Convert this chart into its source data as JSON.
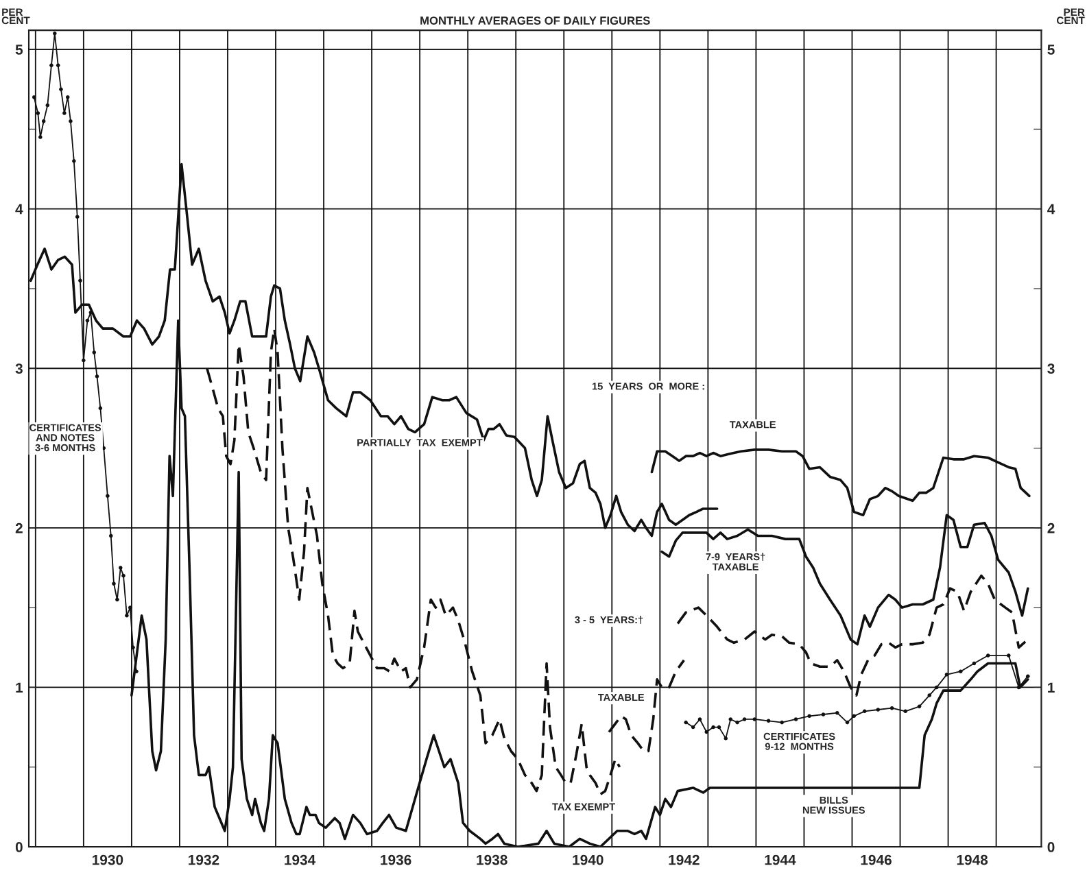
{
  "chart_data": {
    "type": "line",
    "title": "MONTHLY AVERAGES OF DAILY FIGURES",
    "ylabel": "PER\nCENT",
    "y2label": "PER\nCENT",
    "xlim": [
      1928.86,
      1949.94
    ],
    "xticks": [
      {
        "value": 1929,
        "label": null
      },
      {
        "value": 1930,
        "label": null
      },
      {
        "value": 1931,
        "label": null
      },
      {
        "value": 1932,
        "label": null
      },
      {
        "value": 1933,
        "label": null
      },
      {
        "value": 1934,
        "label": null
      },
      {
        "value": 1935,
        "label": null
      },
      {
        "value": 1936,
        "label": null
      },
      {
        "value": 1937,
        "label": null
      },
      {
        "value": 1938,
        "label": null
      },
      {
        "value": 1939,
        "label": null
      },
      {
        "value": 1940,
        "label": null
      },
      {
        "value": 1941,
        "label": null
      },
      {
        "value": 1942,
        "label": null
      },
      {
        "value": 1943,
        "label": null
      },
      {
        "value": 1944,
        "label": null
      },
      {
        "value": 1945,
        "label": null
      },
      {
        "value": 1946,
        "label": null
      },
      {
        "value": 1947,
        "label": null
      },
      {
        "value": 1948,
        "label": null
      },
      {
        "value": 1949,
        "label": null
      },
      {
        "value": 1930.5,
        "label": "1930"
      },
      {
        "value": 1932.5,
        "label": "1932"
      },
      {
        "value": 1934.5,
        "label": "1934"
      },
      {
        "value": 1936.5,
        "label": "1936"
      },
      {
        "value": 1938.5,
        "label": "1938"
      },
      {
        "value": 1940.5,
        "label": "1940"
      },
      {
        "value": 1942.5,
        "label": "1942"
      },
      {
        "value": 1944.5,
        "label": "1944"
      },
      {
        "value": 1946.5,
        "label": "1946"
      },
      {
        "value": 1948.5,
        "label": "1948"
      }
    ],
    "ylim": [
      0,
      5.12
    ],
    "yticks": [
      0,
      {
        "value": 0.5,
        "label": null
      },
      1,
      {
        "value": 1.5,
        "label": null
      },
      2,
      {
        "value": 2.5,
        "label": null
      },
      3,
      {
        "value": 3.5,
        "label": null
      },
      4,
      {
        "value": 4.5,
        "label": null
      },
      5
    ],
    "y2lim": [
      0,
      5.12
    ],
    "y2ticks": [
      0,
      {
        "value": 0.5,
        "label": null
      },
      1,
      {
        "value": 1.5,
        "label": null
      },
      2,
      {
        "value": 2.5,
        "label": null
      },
      3,
      {
        "value": 3.5,
        "label": null
      },
      4,
      {
        "value": 4.5,
        "label": null
      },
      5
    ],
    "grid": true,
    "series": [
      {
        "color": "#111111",
        "marker": "circle",
        "line_style": "solid",
        "x": [
          1928.97,
          1929.05,
          1929.1,
          1929.17,
          1929.25,
          1929.33,
          1929.4,
          1929.47,
          1929.53,
          1929.6,
          1929.67,
          1929.73,
          1929.8,
          1929.87,
          1929.93,
          1930.0,
          1930.08,
          1930.15,
          1930.22,
          1930.28,
          1930.35,
          1930.42,
          1930.5,
          1930.57,
          1930.63,
          1930.7,
          1930.77,
          1930.83,
          1930.9,
          1930.97,
          1931.03,
          1931.1
        ],
        "values": [
          4.7,
          4.6,
          4.45,
          4.55,
          4.65,
          4.9,
          5.1,
          4.9,
          4.75,
          4.6,
          4.7,
          4.55,
          4.3,
          3.95,
          3.55,
          3.05,
          3.3,
          3.35,
          3.1,
          2.95,
          2.75,
          2.5,
          2.2,
          1.95,
          1.65,
          1.55,
          1.75,
          1.7,
          1.45,
          1.5,
          1.25,
          1.1
        ]
      },
      {
        "color": "#111111",
        "marker": "none",
        "line_style": "solid",
        "x": [
          1931.0,
          1931.21,
          1931.31,
          1931.43,
          1931.51,
          1931.61,
          1931.71,
          1931.79,
          1931.86,
          1931.97,
          1932.04,
          1932.11,
          1932.21,
          1932.3,
          1932.4,
          1932.54,
          1932.61,
          1932.73,
          1932.8,
          1932.94,
          1933.04,
          1933.11,
          1933.23,
          1933.29,
          1933.4,
          1933.51,
          1933.57,
          1933.69,
          1933.76,
          1933.86,
          1933.94,
          1934.04,
          1934.19,
          1934.33,
          1934.43,
          1934.5,
          1934.64,
          1934.71,
          1934.83,
          1934.9,
          1935.04,
          1935.23,
          1935.33,
          1935.44,
          1935.61,
          1935.76,
          1935.9,
          1936.11,
          1936.23,
          1936.36,
          1936.51,
          1936.71,
          1936.9,
          1937.14,
          1937.29,
          1937.4,
          1937.51,
          1937.64,
          1937.8,
          1937.9,
          1938.04,
          1938.26,
          1938.37,
          1938.51,
          1938.63,
          1938.76,
          1939.04,
          1939.47,
          1939.64,
          1939.8,
          1940.11,
          1940.33,
          1940.54,
          1940.76,
          1941.11,
          1941.33,
          1941.47,
          1941.61,
          1941.71,
          1941.9,
          1942.0,
          1942.11,
          1942.23,
          1942.37,
          1942.69,
          1942.9,
          1943.04,
          1947.4,
          1947.51,
          1947.66,
          1947.76,
          1947.9,
          1948.26,
          1948.47,
          1948.61,
          1948.83,
          1949.4,
          1949.5,
          1949.66
        ],
        "values": [
          0.95,
          1.45,
          1.3,
          0.6,
          0.48,
          0.6,
          1.3,
          2.45,
          2.2,
          3.3,
          2.75,
          2.7,
          1.7,
          0.7,
          0.45,
          0.45,
          0.5,
          0.25,
          0.2,
          0.1,
          0.3,
          0.5,
          2.35,
          0.55,
          0.3,
          0.2,
          0.3,
          0.15,
          0.1,
          0.3,
          0.7,
          0.65,
          0.3,
          0.15,
          0.08,
          0.08,
          0.25,
          0.2,
          0.2,
          0.15,
          0.12,
          0.18,
          0.15,
          0.05,
          0.2,
          0.15,
          0.08,
          0.1,
          0.15,
          0.2,
          0.12,
          0.1,
          0.3,
          0.55,
          0.7,
          0.6,
          0.5,
          0.55,
          0.4,
          0.15,
          0.1,
          0.05,
          0.02,
          0.05,
          0.08,
          0.02,
          0.0,
          0.02,
          0.1,
          0.02,
          0.0,
          0.05,
          0.02,
          0.0,
          0.1,
          0.1,
          0.08,
          0.1,
          0.05,
          0.25,
          0.2,
          0.3,
          0.25,
          0.35,
          0.37,
          0.34,
          0.37,
          0.37,
          0.7,
          0.8,
          0.9,
          0.98,
          0.98,
          1.05,
          1.1,
          1.15,
          1.15,
          1.0,
          1.05
        ]
      },
      {
        "color": "#111111",
        "marker": "circle",
        "line_style": "solid",
        "x": [
          1942.54,
          1942.69,
          1942.83,
          1942.97,
          1943.11,
          1943.23,
          1943.37,
          1943.47,
          1943.61,
          1943.76,
          1943.97,
          1944.26,
          1944.54,
          1944.83,
          1945.11,
          1945.4,
          1945.69,
          1945.9,
          1946.04,
          1946.26,
          1946.54,
          1946.83,
          1947.11,
          1947.4,
          1947.61,
          1947.76,
          1947.97,
          1948.26,
          1948.54,
          1948.83,
          1949.26,
          1949.47,
          1949.66
        ],
        "values": [
          0.78,
          0.75,
          0.8,
          0.72,
          0.75,
          0.75,
          0.68,
          0.8,
          0.78,
          0.8,
          0.8,
          0.79,
          0.78,
          0.8,
          0.82,
          0.83,
          0.84,
          0.78,
          0.82,
          0.85,
          0.86,
          0.87,
          0.85,
          0.88,
          0.95,
          1.0,
          1.08,
          1.1,
          1.15,
          1.2,
          1.2,
          1.0,
          1.07
        ]
      },
      {
        "color": "#111111",
        "marker": "none",
        "line_style": "solid",
        "x": [
          1928.9,
          1929.04,
          1929.19,
          1929.33,
          1929.47,
          1929.61,
          1929.76,
          1929.83,
          1929.97,
          1930.11,
          1930.26,
          1930.4,
          1930.61,
          1930.83,
          1930.97,
          1931.11,
          1931.26,
          1931.43,
          1931.57,
          1931.69,
          1931.8,
          1931.9,
          1932.04,
          1932.14,
          1932.26,
          1932.4,
          1932.54,
          1932.69,
          1932.83,
          1932.94,
          1933.04,
          1933.14,
          1933.26,
          1933.37,
          1933.51,
          1933.66,
          1933.8,
          1933.9,
          1933.97,
          1934.09,
          1934.19,
          1934.3,
          1934.4,
          1934.51,
          1934.66,
          1934.8,
          1934.9,
          1935.09,
          1935.26,
          1935.47,
          1935.61,
          1935.76,
          1935.97,
          1936.19,
          1936.33,
          1936.47,
          1936.61,
          1936.76,
          1936.9,
          1937.09,
          1937.26,
          1937.47,
          1937.61,
          1937.76,
          1937.97,
          1938.19,
          1938.33,
          1938.43,
          1938.54,
          1938.66,
          1938.8,
          1938.97,
          1939.19,
          1939.33,
          1939.44,
          1939.54,
          1939.66,
          1939.76,
          1939.9,
          1940.04,
          1940.19,
          1940.33,
          1940.43,
          1940.54,
          1940.66,
          1940.76,
          1940.86,
          1940.97,
          1941.09,
          1941.19,
          1941.33,
          1941.47,
          1941.61,
          1941.71,
          1941.83,
          1941.94,
          1942.04,
          1942.19,
          1942.33,
          1942.47,
          1942.61,
          1942.76,
          1942.9,
          1943.19
        ],
        "values": [
          3.55,
          3.65,
          3.75,
          3.62,
          3.68,
          3.7,
          3.65,
          3.35,
          3.4,
          3.4,
          3.3,
          3.25,
          3.25,
          3.2,
          3.2,
          3.3,
          3.25,
          3.15,
          3.2,
          3.3,
          3.62,
          3.62,
          4.28,
          4.0,
          3.65,
          3.75,
          3.55,
          3.42,
          3.45,
          3.35,
          3.22,
          3.3,
          3.42,
          3.42,
          3.2,
          3.2,
          3.2,
          3.45,
          3.52,
          3.5,
          3.3,
          3.15,
          3.0,
          2.92,
          3.2,
          3.1,
          3.0,
          2.8,
          2.75,
          2.7,
          2.85,
          2.85,
          2.8,
          2.7,
          2.7,
          2.65,
          2.7,
          2.62,
          2.6,
          2.65,
          2.82,
          2.8,
          2.8,
          2.82,
          2.72,
          2.68,
          2.55,
          2.62,
          2.62,
          2.65,
          2.58,
          2.57,
          2.5,
          2.3,
          2.2,
          2.3,
          2.7,
          2.55,
          2.35,
          2.25,
          2.28,
          2.4,
          2.42,
          2.25,
          2.22,
          2.15,
          2.0,
          2.08,
          2.2,
          2.1,
          2.02,
          1.98,
          2.05,
          2.0,
          1.95,
          2.1,
          2.15,
          2.05,
          2.02,
          2.05,
          2.08,
          2.1,
          2.12,
          2.12
        ]
      },
      {
        "color": "#111111",
        "marker": "none",
        "line_style": "solid",
        "x": [
          1941.83,
          1941.94,
          1942.11,
          1942.26,
          1942.4,
          1942.54,
          1942.69,
          1942.83,
          1942.97,
          1943.11,
          1943.26,
          1943.4,
          1943.54,
          1943.69,
          1943.97,
          1944.26,
          1944.54,
          1944.83,
          1944.97,
          1945.11,
          1945.33,
          1945.54,
          1945.76,
          1945.9,
          1946.04,
          1946.23,
          1946.37,
          1946.54,
          1946.69,
          1946.83,
          1946.97,
          1947.26,
          1947.4,
          1947.54,
          1947.69,
          1947.9,
          1948.11,
          1948.33,
          1948.54,
          1948.83,
          1949.04,
          1949.26,
          1949.4,
          1949.51,
          1949.69
        ],
        "values": [
          2.35,
          2.48,
          2.48,
          2.45,
          2.42,
          2.45,
          2.45,
          2.47,
          2.45,
          2.47,
          2.45,
          2.46,
          2.47,
          2.48,
          2.49,
          2.49,
          2.48,
          2.48,
          2.45,
          2.37,
          2.38,
          2.32,
          2.3,
          2.25,
          2.1,
          2.08,
          2.18,
          2.2,
          2.25,
          2.23,
          2.2,
          2.17,
          2.22,
          2.22,
          2.25,
          2.44,
          2.43,
          2.43,
          2.45,
          2.44,
          2.41,
          2.38,
          2.37,
          2.25,
          2.2
        ]
      },
      {
        "color": "#111111",
        "marker": "none",
        "line_style": "solid",
        "x": [
          1942.04,
          1942.19,
          1942.33,
          1942.47,
          1942.69,
          1942.97,
          1943.11,
          1943.26,
          1943.4,
          1943.61,
          1943.83,
          1944.04,
          1944.33,
          1944.61,
          1944.9,
          1945.04,
          1945.19,
          1945.33,
          1945.54,
          1945.76,
          1945.97,
          1946.11,
          1946.26,
          1946.37,
          1946.54,
          1946.76,
          1946.9,
          1947.04,
          1947.26,
          1947.47,
          1947.69,
          1947.83,
          1947.97,
          1948.11,
          1948.26,
          1948.4,
          1948.54,
          1948.76,
          1948.9,
          1949.04,
          1949.26,
          1949.4,
          1949.54,
          1949.66
        ],
        "values": [
          1.85,
          1.82,
          1.92,
          1.97,
          1.97,
          1.97,
          1.93,
          1.97,
          1.93,
          1.95,
          1.99,
          1.95,
          1.95,
          1.93,
          1.93,
          1.82,
          1.75,
          1.65,
          1.55,
          1.45,
          1.3,
          1.27,
          1.45,
          1.38,
          1.5,
          1.58,
          1.55,
          1.5,
          1.52,
          1.52,
          1.55,
          1.75,
          2.08,
          2.05,
          1.88,
          1.88,
          2.02,
          2.03,
          1.95,
          1.8,
          1.72,
          1.6,
          1.45,
          1.62
        ]
      },
      {
        "color": "#111111",
        "marker": "none",
        "line_style": "dashed",
        "x": [
          1932.57,
          1932.71,
          1932.8,
          1932.9,
          1932.97,
          1933.06,
          1933.14,
          1933.23,
          1933.33,
          1933.43,
          1933.54,
          1933.69,
          1933.8,
          1933.9,
          1933.97,
          1934.04,
          1934.14,
          1934.26,
          1934.37,
          1934.49,
          1934.59,
          1934.66,
          1934.76,
          1934.86,
          1934.97,
          1935.09,
          1935.19,
          1935.29,
          1935.4,
          1935.54,
          1935.64,
          1935.71,
          1935.83,
          1935.97,
          1936.11,
          1936.26,
          1936.37,
          1936.47,
          1936.61,
          1936.71,
          1936.8,
          1936.94,
          1937.09,
          1937.23,
          1937.33,
          1937.43,
          1937.54,
          1937.69,
          1937.8,
          1937.94,
          1938.09,
          1938.26,
          1938.37,
          1938.51,
          1938.66,
          1938.76,
          1938.9,
          1939.04,
          1939.19,
          1939.33,
          1939.43,
          1939.54,
          1939.64,
          1939.71,
          1939.83,
          1939.94,
          1940.04,
          1940.14,
          1940.26,
          1940.37,
          1940.47,
          1940.54,
          1940.66,
          1940.76,
          1940.86,
          1940.97,
          1941.07,
          1941.16
        ],
        "values": [
          3.0,
          2.85,
          2.75,
          2.7,
          2.45,
          2.4,
          2.55,
          3.15,
          2.95,
          2.6,
          2.5,
          2.35,
          2.3,
          3.1,
          3.25,
          3.1,
          2.5,
          2.0,
          1.8,
          1.55,
          1.85,
          2.25,
          2.1,
          1.95,
          1.65,
          1.45,
          1.2,
          1.15,
          1.12,
          1.15,
          1.48,
          1.35,
          1.28,
          1.2,
          1.12,
          1.12,
          1.1,
          1.18,
          1.1,
          1.12,
          1.0,
          1.05,
          1.25,
          1.55,
          1.5,
          1.55,
          1.45,
          1.5,
          1.42,
          1.28,
          1.1,
          0.95,
          0.65,
          0.7,
          0.8,
          0.68,
          0.6,
          0.55,
          0.45,
          0.4,
          0.35,
          0.45,
          1.15,
          0.75,
          0.5,
          0.45,
          0.4,
          0.4,
          0.58,
          0.77,
          0.5,
          0.45,
          0.4,
          0.33,
          0.35,
          0.45,
          0.55,
          0.5
        ]
      },
      {
        "color": "#111111",
        "marker": "none",
        "line_style": "dashed",
        "x": [
          1940.94,
          1941.09,
          1941.19,
          1941.29,
          1941.4,
          1941.54,
          1941.66,
          1941.76,
          1941.86,
          1941.94,
          1942.04,
          1942.19,
          1942.33,
          1942.5
        ],
        "values": [
          0.72,
          0.78,
          0.82,
          0.8,
          0.7,
          0.65,
          0.6,
          0.6,
          0.8,
          1.05,
          1.0,
          1.0,
          1.1,
          1.17
        ]
      },
      {
        "color": "#111111",
        "marker": "none",
        "line_style": "dashed",
        "x": [
          1942.37,
          1942.54,
          1942.8,
          1942.97,
          1943.19,
          1943.4,
          1943.54,
          1943.76,
          1943.97,
          1944.19,
          1944.33,
          1944.54,
          1944.69,
          1944.9,
          1945.04,
          1945.14,
          1945.33,
          1945.54,
          1945.69,
          1945.83,
          1945.97,
          1946.09,
          1946.19,
          1946.33,
          1946.47,
          1946.61,
          1946.76,
          1946.9,
          1947.04,
          1947.26,
          1947.47,
          1947.61,
          1947.76,
          1947.9,
          1948.04,
          1948.19,
          1948.33,
          1948.47,
          1948.69,
          1948.83,
          1948.97,
          1949.19,
          1949.33,
          1949.47,
          1949.66
        ],
        "values": [
          1.4,
          1.47,
          1.5,
          1.45,
          1.38,
          1.3,
          1.28,
          1.3,
          1.35,
          1.3,
          1.33,
          1.32,
          1.28,
          1.27,
          1.22,
          1.15,
          1.13,
          1.13,
          1.17,
          1.1,
          1.0,
          0.95,
          1.08,
          1.17,
          1.2,
          1.27,
          1.28,
          1.25,
          1.27,
          1.27,
          1.28,
          1.33,
          1.5,
          1.52,
          1.62,
          1.6,
          1.48,
          1.6,
          1.7,
          1.65,
          1.55,
          1.5,
          1.47,
          1.25,
          1.3
        ]
      }
    ],
    "annotations": [
      "CERTIFICATES\nAND NOTES\n3-6 MONTHS",
      "PARTIALLY  TAX  EXEMPT",
      "15  YEARS  OR  MORE :",
      "TAXABLE",
      "7-9  YEARS†\nTAXABLE",
      "3 - 5  YEARS:†",
      "TAXABLE",
      "TAX EXEMPT",
      "CERTIFICATES\n9-12  MONTHS",
      "BILLS\nNEW ISSUES"
    ]
  }
}
